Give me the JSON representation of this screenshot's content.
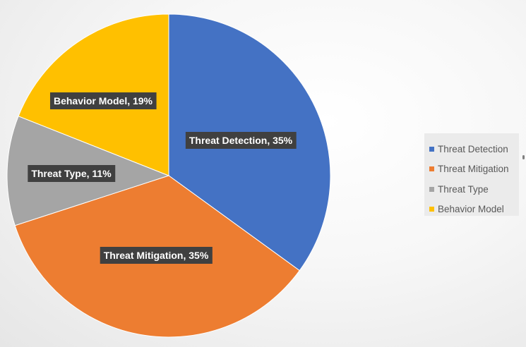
{
  "chart_data": {
    "type": "pie",
    "title": "",
    "slices": [
      {
        "name": "Threat Detection",
        "value": 35,
        "label": "Threat Detection, 35%",
        "color": "#4472C4"
      },
      {
        "name": "Threat Mitigation",
        "value": 35,
        "label": "Threat Mitigation, 35%",
        "color": "#ED7D31"
      },
      {
        "name": "Threat Type",
        "value": 11,
        "label": "Threat Type, 11%",
        "color": "#A5A5A5"
      },
      {
        "name": "Behavior Model",
        "value": 19,
        "label": "Behavior Model, 19%",
        "color": "#FFC000"
      }
    ],
    "legend_position": "right",
    "start_angle_deg": 0,
    "direction": "clockwise"
  },
  "legend": {
    "items": [
      {
        "label": "Threat Detection",
        "color": "#4472C4"
      },
      {
        "label": "Threat Mitigation",
        "color": "#ED7D31"
      },
      {
        "label": "Threat Type",
        "color": "#A5A5A5"
      },
      {
        "label": "Behavior Model",
        "color": "#FFC000"
      }
    ]
  }
}
